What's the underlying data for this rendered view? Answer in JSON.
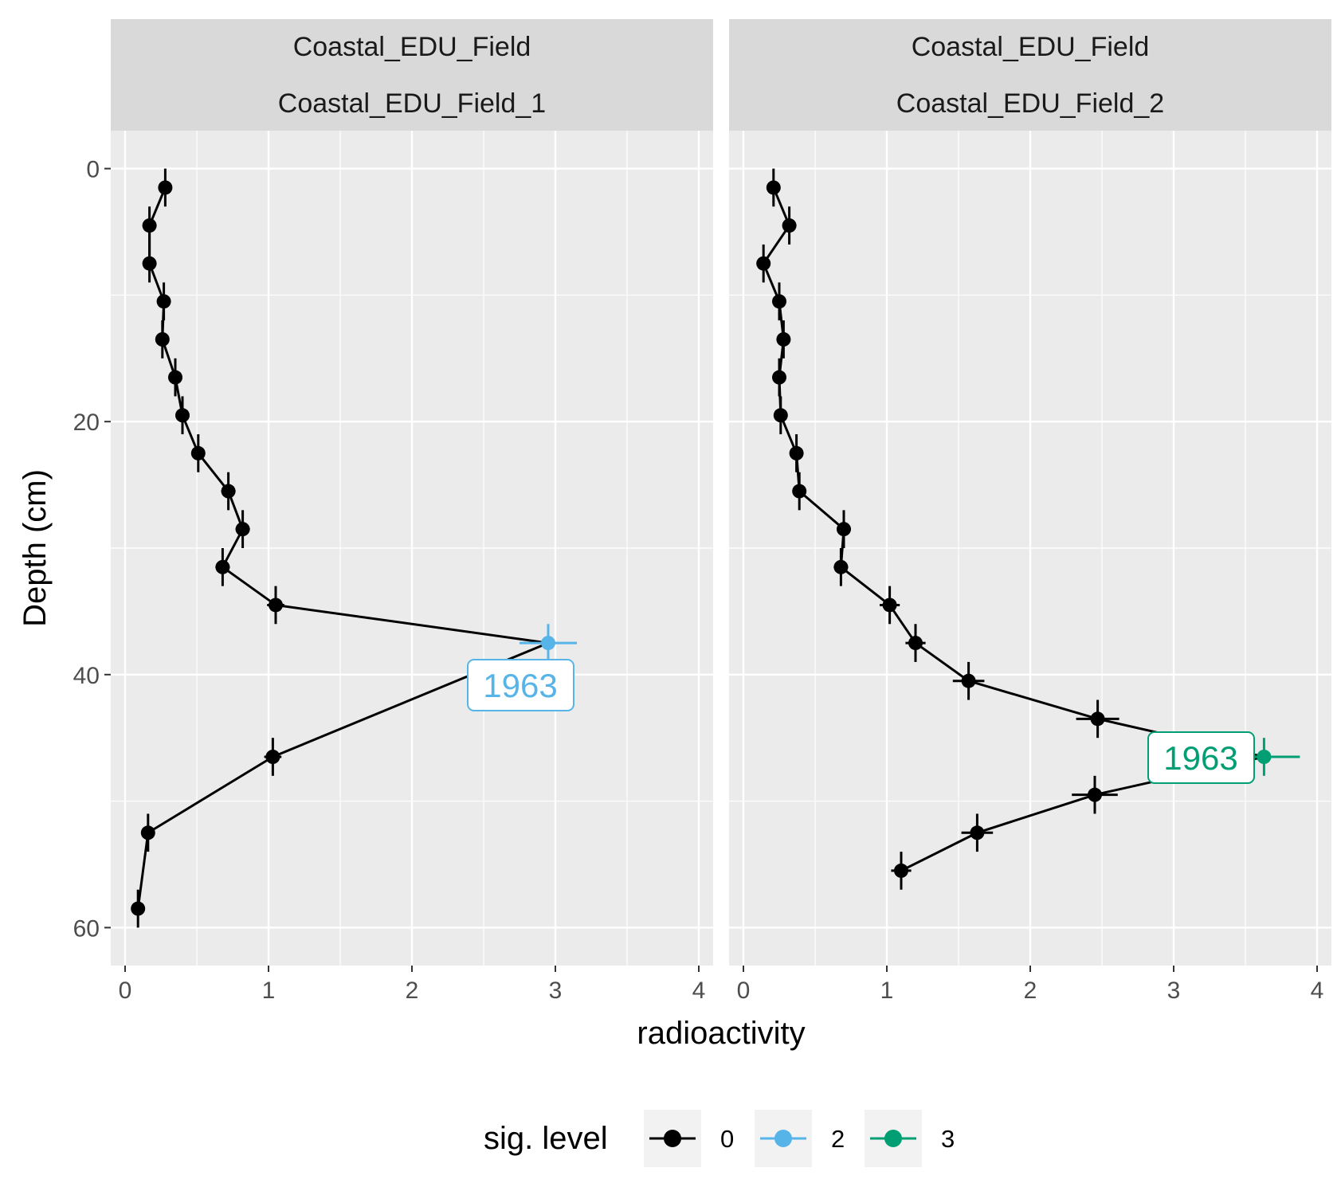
{
  "chart_data": {
    "type": "line",
    "xlabel": "radioactivity",
    "ylabel": "Depth (cm)",
    "xlim": [
      -0.1,
      4.1
    ],
    "ylim": [
      -3,
      63
    ],
    "y_reversed": true,
    "x_ticks": [
      "0",
      "1",
      "2",
      "3",
      "4"
    ],
    "x_tick_values": [
      0,
      1,
      2,
      3,
      4
    ],
    "y_ticks": [
      "0",
      "20",
      "40",
      "60"
    ],
    "y_tick_values": [
      0,
      20,
      40,
      60
    ],
    "grid": true,
    "legend": {
      "title": "sig. level",
      "position": "bottom",
      "entries": [
        {
          "label": "0",
          "color": "#000000"
        },
        {
          "label": "2",
          "color": "#56B4E9"
        },
        {
          "label": "3",
          "color": "#009E73"
        }
      ]
    },
    "panels": [
      {
        "strip_top": "Coastal_EDU_Field",
        "strip_bottom": "Coastal_EDU_Field_1",
        "annotation": {
          "text": "1963",
          "color": "#56B4E9",
          "x": 2.75,
          "y": 40.9
        },
        "points": [
          {
            "x": 0.28,
            "y": 1.5,
            "xerr": 0.02,
            "yerr": 1.5,
            "level": 0
          },
          {
            "x": 0.17,
            "y": 4.5,
            "xerr": 0.02,
            "yerr": 1.5,
            "level": 0
          },
          {
            "x": 0.17,
            "y": 7.5,
            "xerr": 0.02,
            "yerr": 1.5,
            "level": 0
          },
          {
            "x": 0.27,
            "y": 10.5,
            "xerr": 0.02,
            "yerr": 1.5,
            "level": 0
          },
          {
            "x": 0.26,
            "y": 13.5,
            "xerr": 0.02,
            "yerr": 1.5,
            "level": 0
          },
          {
            "x": 0.35,
            "y": 16.5,
            "xerr": 0.03,
            "yerr": 1.5,
            "level": 0
          },
          {
            "x": 0.4,
            "y": 19.5,
            "xerr": 0.03,
            "yerr": 1.5,
            "level": 0
          },
          {
            "x": 0.51,
            "y": 22.5,
            "xerr": 0.04,
            "yerr": 1.5,
            "level": 0
          },
          {
            "x": 0.72,
            "y": 25.5,
            "xerr": 0.05,
            "yerr": 1.5,
            "level": 0
          },
          {
            "x": 0.82,
            "y": 28.5,
            "xerr": 0.05,
            "yerr": 1.5,
            "level": 0
          },
          {
            "x": 0.68,
            "y": 31.5,
            "xerr": 0.05,
            "yerr": 1.5,
            "level": 0
          },
          {
            "x": 1.05,
            "y": 34.5,
            "xerr": 0.06,
            "yerr": 1.5,
            "level": 0
          },
          {
            "x": 2.95,
            "y": 37.5,
            "xerr": 0.2,
            "yerr": 1.5,
            "level": 2
          },
          {
            "x": 1.03,
            "y": 46.5,
            "xerr": 0.06,
            "yerr": 1.5,
            "level": 0
          },
          {
            "x": 0.16,
            "y": 52.5,
            "xerr": 0.02,
            "yerr": 1.5,
            "level": 0
          },
          {
            "x": 0.09,
            "y": 58.5,
            "xerr": 0.02,
            "yerr": 1.5,
            "level": 0
          }
        ]
      },
      {
        "strip_top": "Coastal_EDU_Field",
        "strip_bottom": "Coastal_EDU_Field_2",
        "annotation": {
          "text": "1963",
          "color": "#009E73",
          "x": 3.17,
          "y": 46.6
        },
        "points": [
          {
            "x": 0.21,
            "y": 1.5,
            "xerr": 0.02,
            "yerr": 1.5,
            "level": 0
          },
          {
            "x": 0.32,
            "y": 4.5,
            "xerr": 0.03,
            "yerr": 1.5,
            "level": 0
          },
          {
            "x": 0.14,
            "y": 7.5,
            "xerr": 0.02,
            "yerr": 1.5,
            "level": 0
          },
          {
            "x": 0.25,
            "y": 10.5,
            "xerr": 0.02,
            "yerr": 1.5,
            "level": 0
          },
          {
            "x": 0.28,
            "y": 13.5,
            "xerr": 0.02,
            "yerr": 1.5,
            "level": 0
          },
          {
            "x": 0.25,
            "y": 16.5,
            "xerr": 0.02,
            "yerr": 1.5,
            "level": 0
          },
          {
            "x": 0.26,
            "y": 19.5,
            "xerr": 0.02,
            "yerr": 1.5,
            "level": 0
          },
          {
            "x": 0.37,
            "y": 22.5,
            "xerr": 0.03,
            "yerr": 1.5,
            "level": 0
          },
          {
            "x": 0.39,
            "y": 25.5,
            "xerr": 0.03,
            "yerr": 1.5,
            "level": 0
          },
          {
            "x": 0.7,
            "y": 28.5,
            "xerr": 0.05,
            "yerr": 1.5,
            "level": 0
          },
          {
            "x": 0.68,
            "y": 31.5,
            "xerr": 0.05,
            "yerr": 1.5,
            "level": 0
          },
          {
            "x": 1.02,
            "y": 34.5,
            "xerr": 0.07,
            "yerr": 1.5,
            "level": 0
          },
          {
            "x": 1.2,
            "y": 37.5,
            "xerr": 0.07,
            "yerr": 1.5,
            "level": 0
          },
          {
            "x": 1.57,
            "y": 40.5,
            "xerr": 0.11,
            "yerr": 1.5,
            "level": 0
          },
          {
            "x": 2.47,
            "y": 43.5,
            "xerr": 0.15,
            "yerr": 1.5,
            "level": 0
          },
          {
            "x": 3.63,
            "y": 46.5,
            "xerr": 0.25,
            "yerr": 1.5,
            "level": 3
          },
          {
            "x": 2.45,
            "y": 49.5,
            "xerr": 0.16,
            "yerr": 1.5,
            "level": 0
          },
          {
            "x": 1.63,
            "y": 52.5,
            "xerr": 0.11,
            "yerr": 1.5,
            "level": 0
          },
          {
            "x": 1.1,
            "y": 55.5,
            "xerr": 0.07,
            "yerr": 1.5,
            "level": 0
          }
        ]
      }
    ]
  }
}
